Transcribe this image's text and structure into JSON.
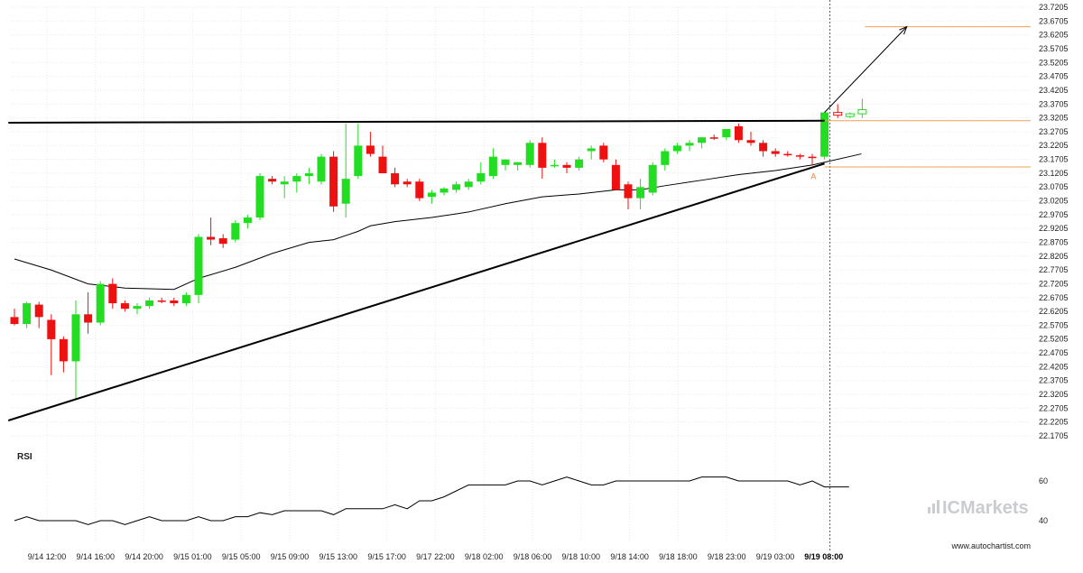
{
  "chart_data": [
    {
      "type": "candlestick",
      "ylim": [
        22.1705,
        23.7205
      ],
      "y_ticks": [
        "23.7205",
        "23.6705",
        "23.6205",
        "23.5705",
        "23.5205",
        "23.4705",
        "23.4205",
        "23.3705",
        "23.3205",
        "23.2705",
        "23.2205",
        "23.1705",
        "23.1205",
        "23.0705",
        "23.0205",
        "22.9705",
        "22.9205",
        "22.8705",
        "22.8205",
        "22.7705",
        "22.7205",
        "22.6705",
        "22.6205",
        "22.5705",
        "22.5205",
        "22.4705",
        "22.4205",
        "22.3705",
        "22.3205",
        "22.2705",
        "22.2205",
        "22.1705"
      ],
      "x_ticks": [
        "9/14 12:00",
        "9/14 16:00",
        "9/14 20:00",
        "9/15 01:00",
        "9/15 05:00",
        "9/15 09:00",
        "9/15 13:00",
        "9/15 17:00",
        "9/17 22:00",
        "9/18 02:00",
        "9/18 06:00",
        "9/18 10:00",
        "9/18 14:00",
        "9/18 18:00",
        "9/18 23:00",
        "9/19 03:00",
        "9/19 08:00"
      ],
      "x_tick_bold": "9/19 08:00",
      "grid": true,
      "colors": {
        "up": "#22dd22",
        "down": "#ee1111",
        "trend": "#000000",
        "level": "#f0a050",
        "ma": "#000000"
      },
      "candles": [
        {
          "o": 22.6,
          "h": 22.63,
          "l": 22.57,
          "c": 22.575
        },
        {
          "o": 22.575,
          "h": 22.655,
          "l": 22.56,
          "c": 22.65
        },
        {
          "o": 22.645,
          "h": 22.655,
          "l": 22.56,
          "c": 22.6
        },
        {
          "o": 22.59,
          "h": 22.61,
          "l": 22.39,
          "c": 22.52
        },
        {
          "o": 22.52,
          "h": 22.53,
          "l": 22.4,
          "c": 22.44
        },
        {
          "o": 22.44,
          "h": 22.66,
          "l": 22.3,
          "c": 22.61
        },
        {
          "o": 22.61,
          "h": 22.69,
          "l": 22.54,
          "c": 22.58
        },
        {
          "o": 22.58,
          "h": 22.73,
          "l": 22.57,
          "c": 22.72
        },
        {
          "o": 22.72,
          "h": 22.74,
          "l": 22.63,
          "c": 22.65
        },
        {
          "o": 22.65,
          "h": 22.66,
          "l": 22.62,
          "c": 22.63
        },
        {
          "o": 22.63,
          "h": 22.65,
          "l": 22.61,
          "c": 22.64
        },
        {
          "o": 22.64,
          "h": 22.67,
          "l": 22.63,
          "c": 22.66
        },
        {
          "o": 22.66,
          "h": 22.67,
          "l": 22.65,
          "c": 22.655
        },
        {
          "o": 22.66,
          "h": 22.67,
          "l": 22.64,
          "c": 22.65
        },
        {
          "o": 22.65,
          "h": 22.69,
          "l": 22.64,
          "c": 22.68
        },
        {
          "o": 22.68,
          "h": 22.9,
          "l": 22.65,
          "c": 22.89
        },
        {
          "o": 22.89,
          "h": 22.96,
          "l": 22.86,
          "c": 22.88
        },
        {
          "o": 22.885,
          "h": 22.9,
          "l": 22.85,
          "c": 22.865
        },
        {
          "o": 22.88,
          "h": 22.95,
          "l": 22.87,
          "c": 22.94
        },
        {
          "o": 22.94,
          "h": 22.97,
          "l": 22.92,
          "c": 22.96
        },
        {
          "o": 22.96,
          "h": 23.12,
          "l": 22.95,
          "c": 23.11
        },
        {
          "o": 23.1,
          "h": 23.11,
          "l": 23.08,
          "c": 23.09
        },
        {
          "o": 23.08,
          "h": 23.11,
          "l": 23.03,
          "c": 23.09
        },
        {
          "o": 23.09,
          "h": 23.12,
          "l": 23.05,
          "c": 23.11
        },
        {
          "o": 23.11,
          "h": 23.14,
          "l": 23.08,
          "c": 23.12
        },
        {
          "o": 23.09,
          "h": 23.19,
          "l": 23.08,
          "c": 23.18
        },
        {
          "o": 23.18,
          "h": 23.2,
          "l": 22.98,
          "c": 23.0
        },
        {
          "o": 23.01,
          "h": 23.3,
          "l": 22.96,
          "c": 23.1
        },
        {
          "o": 23.11,
          "h": 23.3,
          "l": 23.1,
          "c": 23.22
        },
        {
          "o": 23.22,
          "h": 23.27,
          "l": 23.18,
          "c": 23.19
        },
        {
          "o": 23.18,
          "h": 23.22,
          "l": 23.12,
          "c": 23.12
        },
        {
          "o": 23.12,
          "h": 23.14,
          "l": 23.07,
          "c": 23.08
        },
        {
          "o": 23.09,
          "h": 23.1,
          "l": 23.07,
          "c": 23.08
        },
        {
          "o": 23.09,
          "h": 23.1,
          "l": 23.02,
          "c": 23.03
        },
        {
          "o": 23.035,
          "h": 23.06,
          "l": 23.01,
          "c": 23.05
        },
        {
          "o": 23.05,
          "h": 23.07,
          "l": 23.04,
          "c": 23.065
        },
        {
          "o": 23.06,
          "h": 23.09,
          "l": 23.05,
          "c": 23.08
        },
        {
          "o": 23.07,
          "h": 23.1,
          "l": 23.06,
          "c": 23.09
        },
        {
          "o": 23.09,
          "h": 23.16,
          "l": 23.08,
          "c": 23.12
        },
        {
          "o": 23.11,
          "h": 23.21,
          "l": 23.1,
          "c": 23.18
        },
        {
          "o": 23.15,
          "h": 23.17,
          "l": 23.13,
          "c": 23.17
        },
        {
          "o": 23.15,
          "h": 23.16,
          "l": 23.13,
          "c": 23.16
        },
        {
          "o": 23.15,
          "h": 23.24,
          "l": 23.14,
          "c": 23.23
        },
        {
          "o": 23.23,
          "h": 23.25,
          "l": 23.1,
          "c": 23.14
        },
        {
          "o": 23.15,
          "h": 23.17,
          "l": 23.14,
          "c": 23.15
        },
        {
          "o": 23.15,
          "h": 23.16,
          "l": 23.12,
          "c": 23.14
        },
        {
          "o": 23.14,
          "h": 23.18,
          "l": 23.13,
          "c": 23.17
        },
        {
          "o": 23.2,
          "h": 23.22,
          "l": 23.17,
          "c": 23.21
        },
        {
          "o": 23.22,
          "h": 23.23,
          "l": 23.16,
          "c": 23.17
        },
        {
          "o": 23.15,
          "h": 23.17,
          "l": 23.06,
          "c": 23.06
        },
        {
          "o": 23.08,
          "h": 23.09,
          "l": 22.99,
          "c": 23.03
        },
        {
          "o": 23.03,
          "h": 23.1,
          "l": 22.99,
          "c": 23.07
        },
        {
          "o": 23.05,
          "h": 23.16,
          "l": 23.04,
          "c": 23.15
        },
        {
          "o": 23.15,
          "h": 23.21,
          "l": 23.13,
          "c": 23.2
        },
        {
          "o": 23.2,
          "h": 23.23,
          "l": 23.19,
          "c": 23.22
        },
        {
          "o": 23.22,
          "h": 23.24,
          "l": 23.2,
          "c": 23.23
        },
        {
          "o": 23.23,
          "h": 23.25,
          "l": 23.21,
          "c": 23.25
        },
        {
          "o": 23.25,
          "h": 23.26,
          "l": 23.24,
          "c": 23.245
        },
        {
          "o": 23.25,
          "h": 23.28,
          "l": 23.24,
          "c": 23.28
        },
        {
          "o": 23.29,
          "h": 23.3,
          "l": 23.23,
          "c": 23.24
        },
        {
          "o": 23.24,
          "h": 23.27,
          "l": 23.22,
          "c": 23.23
        },
        {
          "o": 23.23,
          "h": 23.24,
          "l": 23.18,
          "c": 23.2
        },
        {
          "o": 23.2,
          "h": 23.21,
          "l": 23.18,
          "c": 23.19
        },
        {
          "o": 23.19,
          "h": 23.2,
          "l": 23.18,
          "c": 23.185
        },
        {
          "o": 23.185,
          "h": 23.19,
          "l": 23.17,
          "c": 23.18
        },
        {
          "o": 23.18,
          "h": 23.19,
          "l": 23.15,
          "c": 23.175
        },
        {
          "o": 23.18,
          "h": 23.34,
          "l": 23.17,
          "c": 23.34
        }
      ],
      "projected_candles": [
        {
          "o": 23.33,
          "h": 23.37,
          "l": 23.32,
          "c": 23.34,
          "up": false
        },
        {
          "o": 23.33,
          "h": 23.34,
          "l": 23.32,
          "c": 23.335,
          "up": true
        },
        {
          "o": 23.335,
          "h": 23.39,
          "l": 23.32,
          "c": 23.35,
          "up": true
        }
      ],
      "moving_average": [
        {
          "i": 0,
          "v": 22.81
        },
        {
          "i": 3,
          "v": 22.77
        },
        {
          "i": 6,
          "v": 22.72
        },
        {
          "i": 9,
          "v": 22.705
        },
        {
          "i": 13,
          "v": 22.7
        },
        {
          "i": 15,
          "v": 22.74
        },
        {
          "i": 18,
          "v": 22.78
        },
        {
          "i": 21,
          "v": 22.83
        },
        {
          "i": 24,
          "v": 22.87
        },
        {
          "i": 26,
          "v": 22.88
        },
        {
          "i": 28,
          "v": 22.91
        },
        {
          "i": 29,
          "v": 22.93
        },
        {
          "i": 31,
          "v": 22.945
        },
        {
          "i": 34,
          "v": 22.96
        },
        {
          "i": 37,
          "v": 22.98
        },
        {
          "i": 40,
          "v": 23.01
        },
        {
          "i": 43,
          "v": 23.035
        },
        {
          "i": 46,
          "v": 23.045
        },
        {
          "i": 49,
          "v": 23.06
        },
        {
          "i": 51,
          "v": 23.06
        },
        {
          "i": 53,
          "v": 23.075
        },
        {
          "i": 56,
          "v": 23.095
        },
        {
          "i": 59,
          "v": 23.115
        },
        {
          "i": 62,
          "v": 23.13
        },
        {
          "i": 65,
          "v": 23.15
        },
        {
          "i": 69,
          "v": 23.19
        }
      ],
      "trend_lines": [
        {
          "i1": -0.5,
          "v1": 23.303,
          "i2": 66,
          "v2": 23.31
        },
        {
          "i1": -0.5,
          "v1": 22.226,
          "i2": 66,
          "v2": 23.155
        }
      ],
      "forecast_arrow": {
        "i1": 66,
        "v1": 23.34,
        "i2": 72.7,
        "v2": 23.65
      },
      "levels": [
        {
          "value": 23.65,
          "i_start": 69.3
        },
        {
          "value": 23.31,
          "i_start": 66
        },
        {
          "value": 23.143,
          "i_start": 66
        }
      ],
      "marker": {
        "label": "A",
        "i": 65.1,
        "v": 23.145
      },
      "current_time_index": 66
    },
    {
      "type": "line",
      "title": "RSI",
      "ylim": [
        35,
        70
      ],
      "y_ticks": [
        "60",
        "40"
      ],
      "values": [
        40,
        42,
        40,
        40,
        40,
        40,
        38,
        40,
        40,
        38,
        40,
        42,
        40,
        40,
        40,
        42,
        40,
        40,
        42,
        42,
        44,
        43,
        45,
        45,
        45,
        45,
        43,
        46,
        46,
        46,
        46,
        48,
        46,
        50,
        50,
        52,
        55,
        58,
        58,
        58,
        58,
        60,
        60,
        58,
        60,
        62,
        60,
        58,
        58,
        60,
        60,
        60,
        60,
        60,
        60,
        60,
        62,
        62,
        62,
        60,
        60,
        60,
        60,
        60,
        58,
        60,
        57,
        57,
        57
      ]
    }
  ],
  "footer": {
    "watermark": "ICMarkets",
    "url": "www.autochartist.com"
  },
  "labels": {
    "rsi": "RSI",
    "marker": "A"
  }
}
